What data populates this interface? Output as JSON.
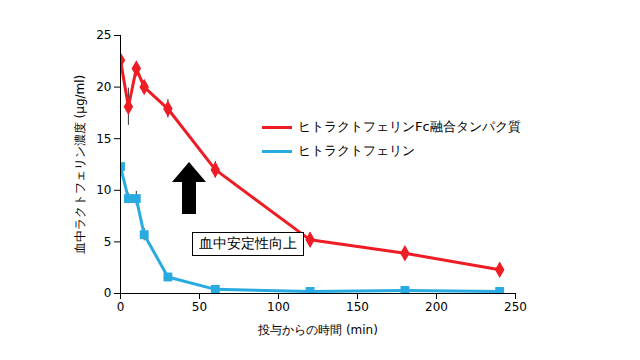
{
  "chart_data": {
    "type": "line",
    "x_label": "投与からの時間 (min)",
    "y_label": "血中ラクトフェリン濃度 (μg/ml)",
    "annotation": "血中安定性向上",
    "x": [
      0,
      5,
      10,
      15,
      30,
      60,
      120,
      180,
      240
    ],
    "series": [
      {
        "name": "ヒトラクトフェリンFc融合タンパク質",
        "color": "#ee1c24",
        "marker": "diamond",
        "values": [
          22.6,
          18.1,
          21.8,
          20.0,
          17.9,
          12.0,
          5.2,
          3.9,
          2.3
        ],
        "errors": [
          0.5,
          1.8,
          0.4,
          0.6,
          0.9,
          0.8,
          0.7,
          0.3,
          0.5
        ]
      },
      {
        "name": "ヒトラクトフェリン",
        "color": "#29abe2",
        "marker": "square",
        "values": [
          12.3,
          9.2,
          9.2,
          5.7,
          1.6,
          0.4,
          0.2,
          0.3,
          0.2
        ],
        "errors": [
          0.5,
          0.5,
          0.7,
          0.6,
          0.2,
          0.1,
          0.1,
          0.1,
          0.1
        ]
      }
    ],
    "xlim": [
      0,
      250
    ],
    "xticks": [
      0,
      50,
      100,
      150,
      200,
      250
    ],
    "ylim": [
      0,
      25
    ],
    "yticks": [
      0,
      5,
      10,
      15,
      20,
      25
    ],
    "grid": false,
    "legend": "top-right"
  }
}
